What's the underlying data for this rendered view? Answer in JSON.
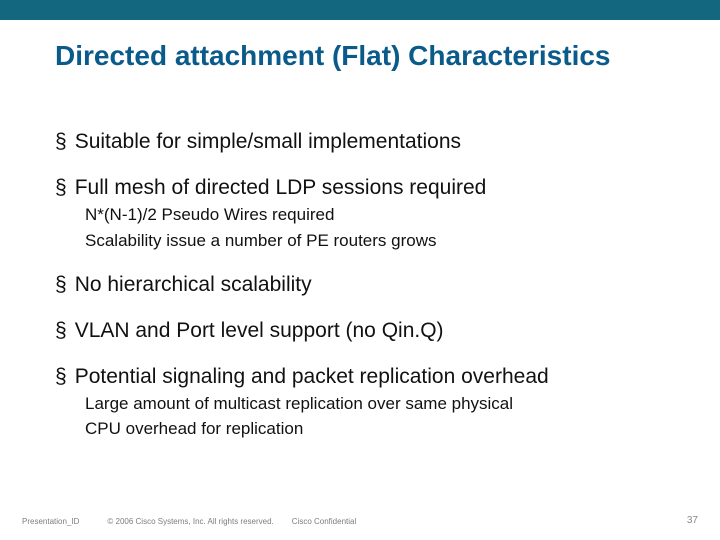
{
  "layout": {
    "top_bar": {
      "height": 20,
      "color": "#13677f"
    },
    "title_color": "#0a5a8a",
    "title_fontsize": 28,
    "bullet_color": "#111111",
    "bullet_fontsize": 21,
    "sub_fontsize": 17,
    "bullet_gap": 22,
    "sub_gap": 4,
    "footer_color": "#7d7d7d",
    "pagenum_color": "#8a8a8a"
  },
  "title": "Directed attachment (Flat) Characteristics",
  "bullets": [
    {
      "text": "Suitable for simple/small implementations",
      "subs": []
    },
    {
      "text": "Full mesh of directed LDP sessions required",
      "subs": [
        "N*(N-1)/2 Pseudo Wires required",
        "Scalability issue a number of PE routers grows"
      ]
    },
    {
      "text": "No hierarchical scalability",
      "subs": []
    },
    {
      "text": "VLAN and Port level support (no Qin.Q)",
      "subs": []
    },
    {
      "text": "Potential signaling and packet replication overhead",
      "subs": [
        "Large amount of multicast replication over same physical",
        "CPU overhead for replication"
      ]
    }
  ],
  "footer": {
    "presentation_id": "Presentation_ID",
    "copyright": "© 2006 Cisco Systems, Inc. All rights reserved.",
    "confidential": "Cisco Confidential",
    "page_number": "37"
  }
}
